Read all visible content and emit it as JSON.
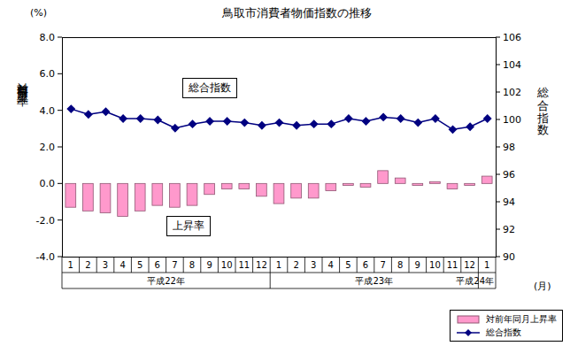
{
  "chart_data": {
    "type": "bar",
    "title": "鳥取市消費者物価指数の推移",
    "categories": [
      "1",
      "2",
      "3",
      "4",
      "5",
      "6",
      "7",
      "8",
      "9",
      "10",
      "11",
      "12",
      "1",
      "2",
      "3",
      "4",
      "5",
      "6",
      "7",
      "8",
      "9",
      "10",
      "11",
      "12",
      "1"
    ],
    "x_groups": [
      {
        "label": "平成22年",
        "months": 12
      },
      {
        "label": "平成23年",
        "months": 12
      },
      {
        "label": "平成24年",
        "months": 1
      }
    ],
    "xlabel": "(月)",
    "ylabel": "対前年同月上昇率",
    "ylabel_unit": "(%)",
    "y2label": "総合指数",
    "series": [
      {
        "name": "対前年同月上昇率",
        "type": "bar",
        "color": "#ff99cc",
        "values": [
          -1.3,
          -1.5,
          -1.6,
          -1.8,
          -1.5,
          -1.2,
          -1.3,
          -1.2,
          -0.6,
          -0.3,
          -0.3,
          -0.7,
          -1.1,
          -0.8,
          -0.8,
          -0.4,
          -0.1,
          -0.2,
          0.7,
          0.3,
          -0.1,
          0.1,
          -0.3,
          -0.1,
          0.4
        ]
      },
      {
        "name": "総合指数",
        "type": "line",
        "color": "#000080",
        "marker": "diamond",
        "axis": "y2",
        "values": [
          100.8,
          100.4,
          100.6,
          100.1,
          100.1,
          100.0,
          99.4,
          99.7,
          99.9,
          99.9,
          99.8,
          99.6,
          99.8,
          99.6,
          99.7,
          99.7,
          100.1,
          99.9,
          100.2,
          100.1,
          99.8,
          100.1,
          99.3,
          99.5,
          100.1
        ]
      }
    ],
    "ylim": [
      -4,
      8
    ],
    "yticks": [
      {
        "value": -4,
        "label": "-4.0"
      },
      {
        "value": -2,
        "label": "-2.0"
      },
      {
        "value": 0,
        "label": "0.0"
      },
      {
        "value": 2,
        "label": "2.0"
      },
      {
        "value": 4,
        "label": "4.0"
      },
      {
        "value": 6,
        "label": "6.0"
      },
      {
        "value": 8,
        "label": "8.0"
      }
    ],
    "y2lim": [
      90,
      106
    ],
    "y2ticks": [
      90,
      92,
      94,
      96,
      98,
      100,
      102,
      104,
      106
    ],
    "annotations": [
      {
        "text": "総合指数"
      },
      {
        "text": "上昇率"
      }
    ],
    "legend": "bottom-right"
  }
}
